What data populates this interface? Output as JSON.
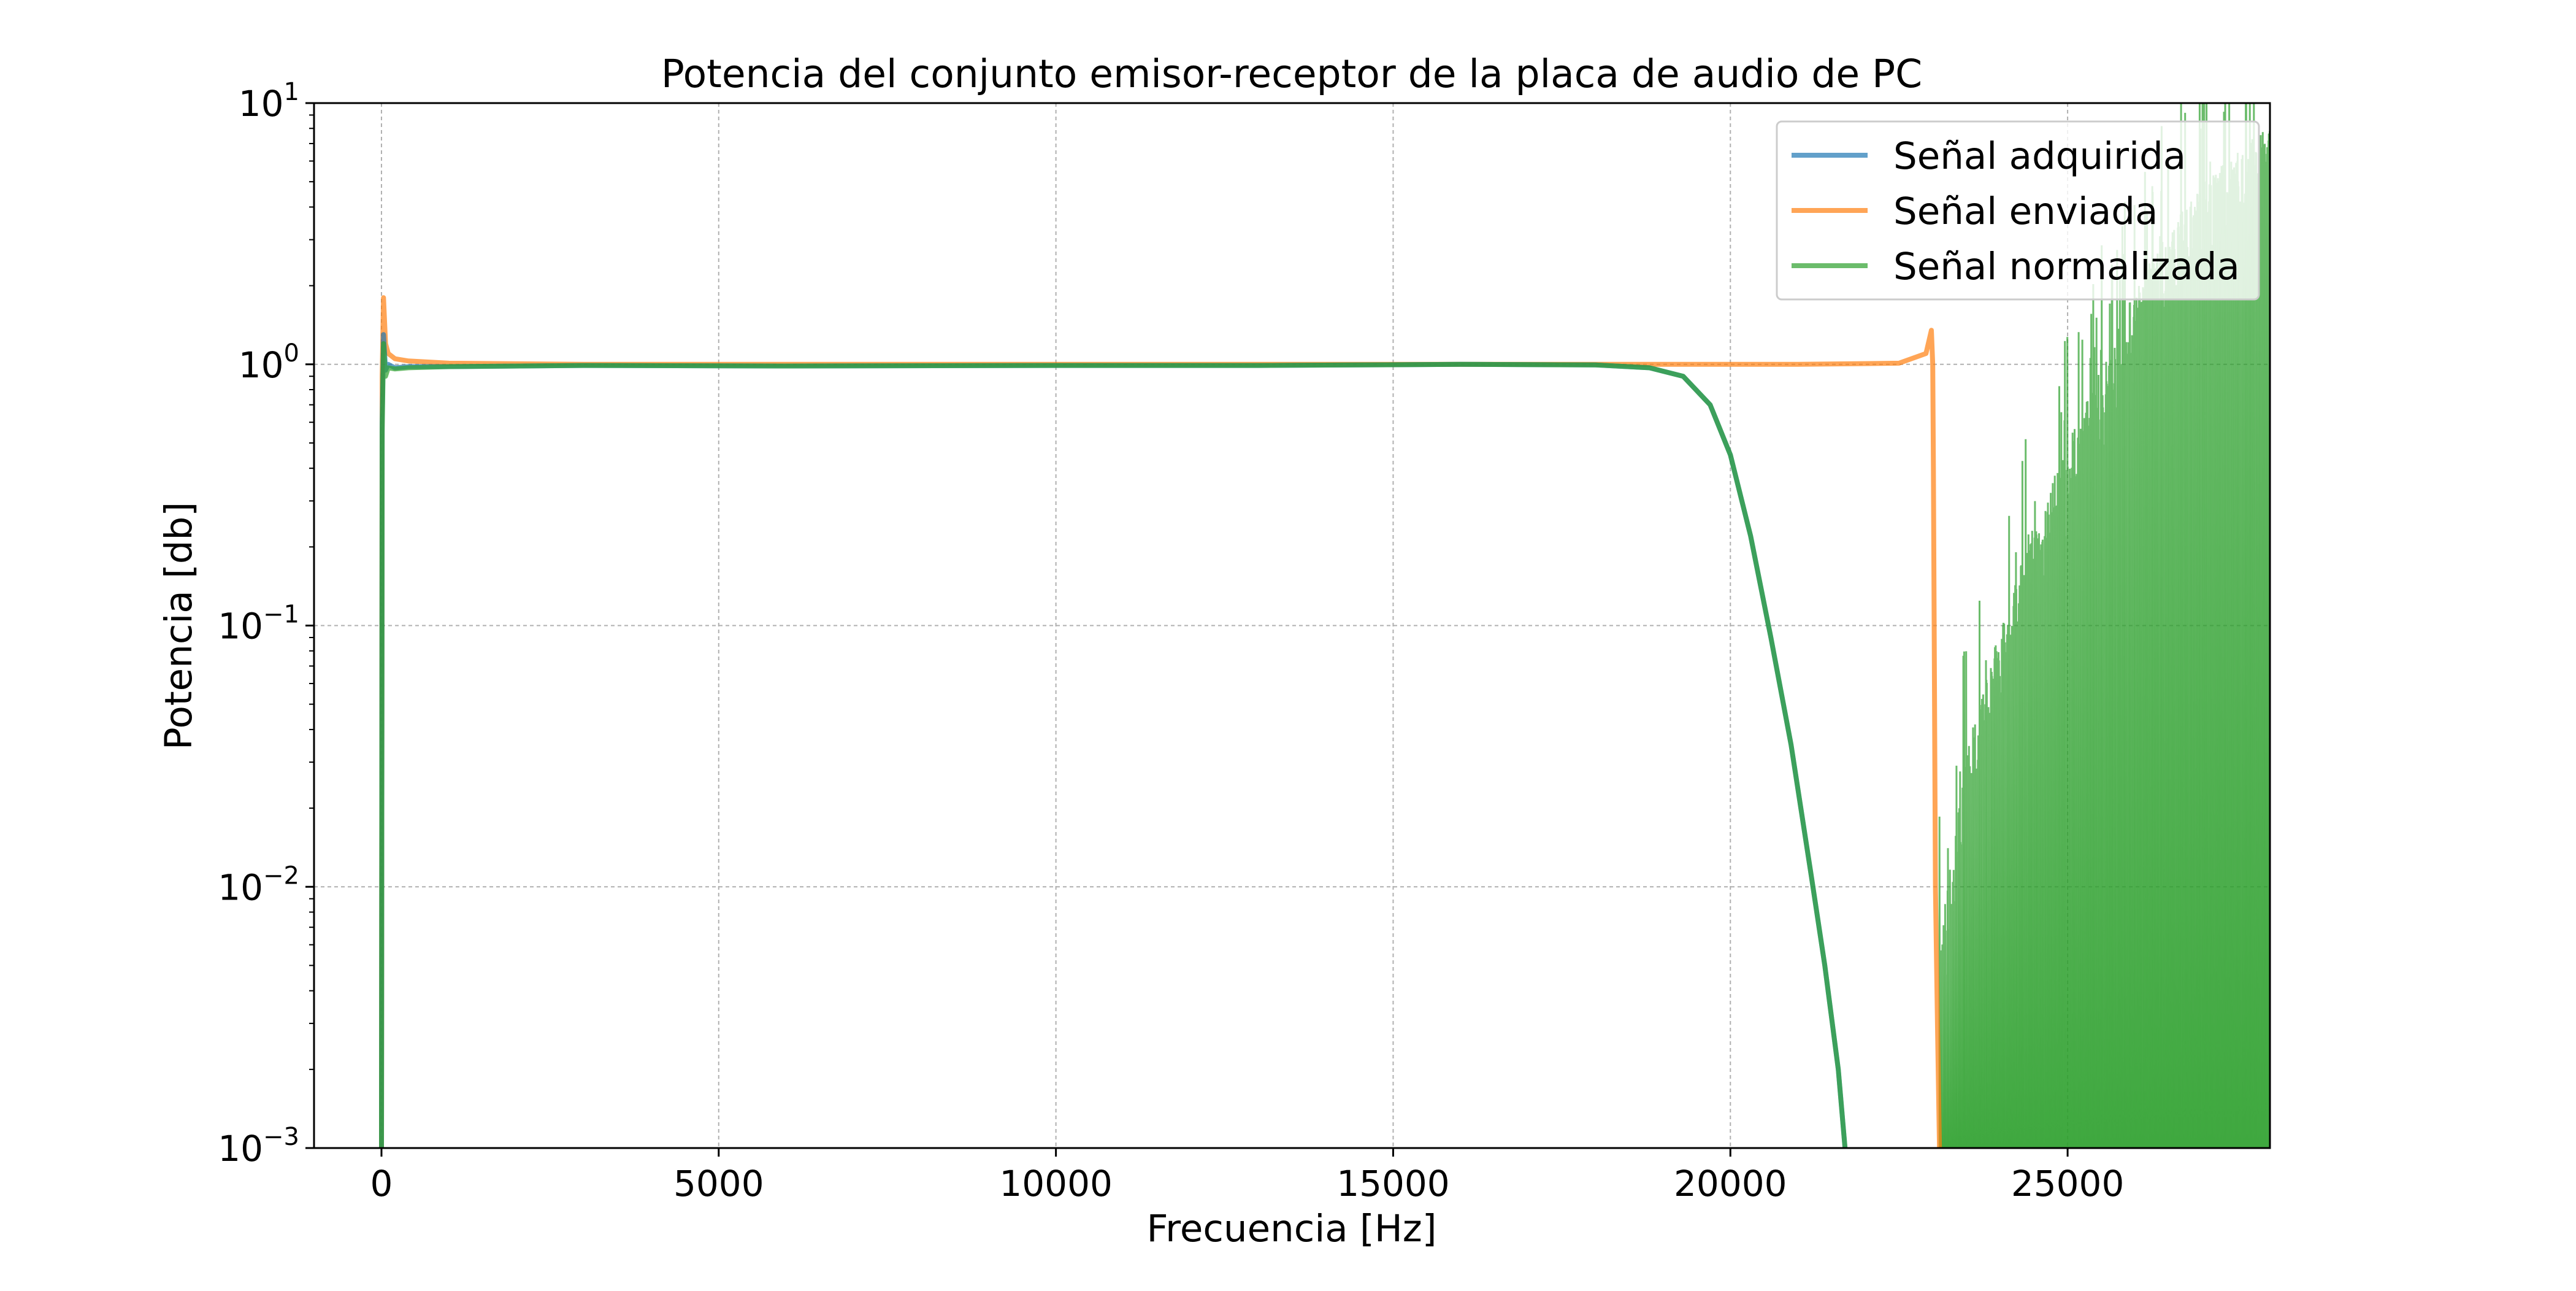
{
  "chart_data": {
    "type": "line",
    "title": "Potencia del conjunto emisor-receptor de la placa de audio de PC",
    "xlabel": "Frecuencia [Hz]",
    "ylabel": "Potencia [db]",
    "xlim": [
      -1000,
      28000
    ],
    "ylim": [
      0.001,
      10
    ],
    "y_scale": "log",
    "x_ticks": [
      0,
      5000,
      10000,
      15000,
      20000,
      25000
    ],
    "x_tick_labels": [
      "0",
      "5000",
      "10000",
      "15000",
      "20000",
      "25000"
    ],
    "y_ticks": [
      {
        "value": 0.001,
        "base": "10",
        "exp": "−3"
      },
      {
        "value": 0.01,
        "base": "10",
        "exp": "−2"
      },
      {
        "value": 0.1,
        "base": "10",
        "exp": "−1"
      },
      {
        "value": 1,
        "base": "10",
        "exp": "0"
      },
      {
        "value": 10,
        "base": "10",
        "exp": "1"
      }
    ],
    "grid": true,
    "legend_position": "upper right",
    "series": [
      {
        "name": "Señal adquirida",
        "color": "#1f77b4",
        "x": [
          0,
          10,
          30,
          60,
          100,
          200,
          400,
          1000,
          3000,
          6000,
          10000,
          13000,
          16000,
          18000,
          18800,
          19300,
          19700,
          20000,
          20300,
          20600,
          20900,
          21200,
          21400,
          21600,
          21700
        ],
        "y": [
          0.001,
          0.6,
          1.3,
          0.95,
          1.0,
          0.97,
          0.98,
          0.98,
          0.99,
          0.985,
          0.99,
          0.99,
          1.0,
          0.995,
          0.97,
          0.9,
          0.7,
          0.45,
          0.22,
          0.09,
          0.035,
          0.011,
          0.005,
          0.002,
          0.001
        ]
      },
      {
        "name": "Señal enviada",
        "color": "#ff7f0e",
        "x": [
          0,
          10,
          30,
          60,
          100,
          200,
          400,
          1000,
          3000,
          6000,
          10000,
          13000,
          16000,
          19000,
          21000,
          22500,
          22900,
          22980,
          23000,
          23010,
          23040,
          23070,
          23100
        ],
        "y": [
          0.001,
          0.9,
          1.8,
          1.2,
          1.1,
          1.05,
          1.03,
          1.01,
          1.0,
          1.0,
          1.0,
          1.0,
          1.0,
          1.0,
          1.0,
          1.01,
          1.1,
          1.35,
          1.0,
          0.4,
          0.01,
          0.003,
          0.001
        ]
      },
      {
        "name": "Señal normalizada",
        "color": "#2ca02c",
        "x": [
          0,
          10,
          30,
          60,
          100,
          200,
          400,
          1000,
          3000,
          6000,
          10000,
          13000,
          16000,
          18000,
          18800,
          19300,
          19700,
          20000,
          20300,
          20600,
          20900,
          21200,
          21400,
          21600,
          21700
        ],
        "y": [
          0.001,
          0.55,
          1.2,
          0.9,
          0.97,
          0.96,
          0.97,
          0.98,
          0.99,
          0.985,
          0.99,
          0.99,
          1.0,
          0.995,
          0.97,
          0.9,
          0.7,
          0.45,
          0.22,
          0.09,
          0.035,
          0.011,
          0.005,
          0.002,
          0.001
        ],
        "noise_region": {
          "x_start": 23100,
          "x_end": 28000,
          "description_envelope_x": [
            23100,
            23500,
            24000,
            24500,
            25000,
            25500,
            26000,
            26500,
            27000,
            27500,
            28000
          ],
          "description_envelope_y": [
            0.004,
            0.02,
            0.06,
            0.15,
            0.3,
            0.6,
            1.2,
            2.0,
            3.0,
            4.0,
            5.0
          ]
        }
      }
    ]
  }
}
